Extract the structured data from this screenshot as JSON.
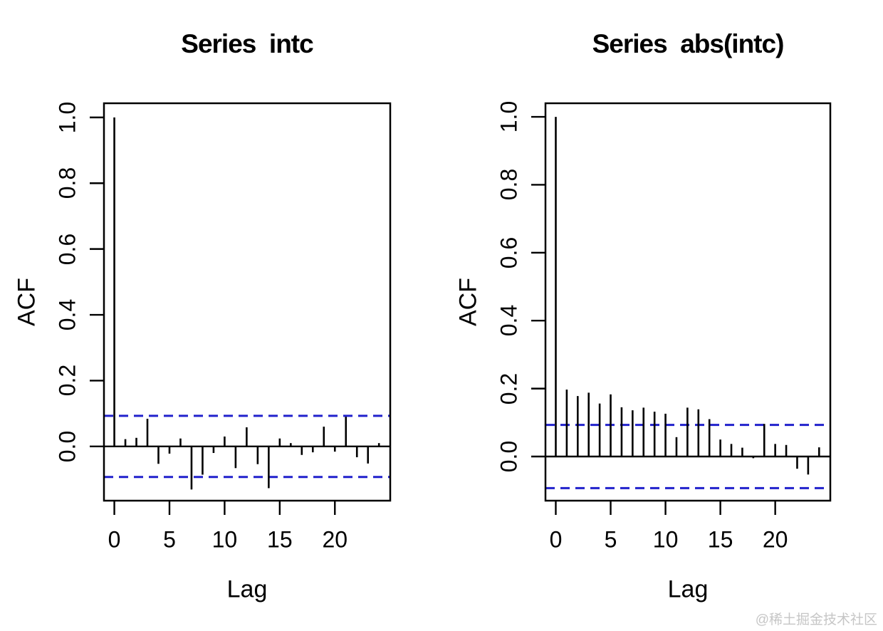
{
  "watermark": {
    "text": "@稀土掘金技术社区",
    "color": "#c6c6c6"
  },
  "colors": {
    "background": "#ffffff",
    "series": "#000000",
    "confidence": "#2121cc"
  },
  "chart_data": [
    {
      "type": "bar",
      "subtype": "acf-lollipop",
      "title": "Series  intc",
      "xlabel": "Lag",
      "ylabel": "ACF",
      "x_ticks": [
        0,
        5,
        10,
        15,
        20
      ],
      "y_tick_labels": [
        "0.0",
        "0.2",
        "0.4",
        "0.6",
        "0.8",
        "1.0"
      ],
      "xlim": [
        -0.94,
        25.02
      ],
      "ylim": [
        -0.165,
        1.043
      ],
      "grid": false,
      "confidence_level": 0.093,
      "confidence_style": "dashed",
      "lags": [
        0,
        1,
        2,
        3,
        4,
        5,
        6,
        7,
        8,
        9,
        10,
        11,
        12,
        13,
        14,
        15,
        16,
        17,
        18,
        19,
        20,
        21,
        22,
        23,
        24
      ],
      "values": [
        1.0,
        0.022,
        0.026,
        0.084,
        -0.053,
        -0.022,
        0.024,
        -0.131,
        -0.086,
        -0.02,
        0.03,
        -0.066,
        0.058,
        -0.054,
        -0.127,
        0.024,
        0.01,
        -0.026,
        -0.018,
        0.06,
        -0.016,
        0.09,
        -0.033,
        -0.052,
        0.01
      ]
    },
    {
      "type": "bar",
      "subtype": "acf-lollipop",
      "title": "Series  abs(intc)",
      "xlabel": "Lag",
      "ylabel": "ACF",
      "x_ticks": [
        0,
        5,
        10,
        15,
        20
      ],
      "y_tick_labels": [
        "0.0",
        "0.2",
        "0.4",
        "0.6",
        "0.8",
        "1.0"
      ],
      "xlim": [
        -0.94,
        25.02
      ],
      "ylim": [
        -0.13,
        1.04
      ],
      "grid": false,
      "confidence_level": 0.093,
      "confidence_style": "dashed",
      "lags": [
        0,
        1,
        2,
        3,
        4,
        5,
        6,
        7,
        8,
        9,
        10,
        11,
        12,
        13,
        14,
        15,
        16,
        17,
        18,
        19,
        20,
        21,
        22,
        23,
        24
      ],
      "values": [
        1.0,
        0.197,
        0.178,
        0.188,
        0.156,
        0.183,
        0.145,
        0.136,
        0.144,
        0.132,
        0.126,
        0.057,
        0.144,
        0.139,
        0.11,
        0.05,
        0.037,
        0.026,
        -0.005,
        0.096,
        0.037,
        0.034,
        -0.036,
        -0.053,
        0.027
      ]
    }
  ]
}
